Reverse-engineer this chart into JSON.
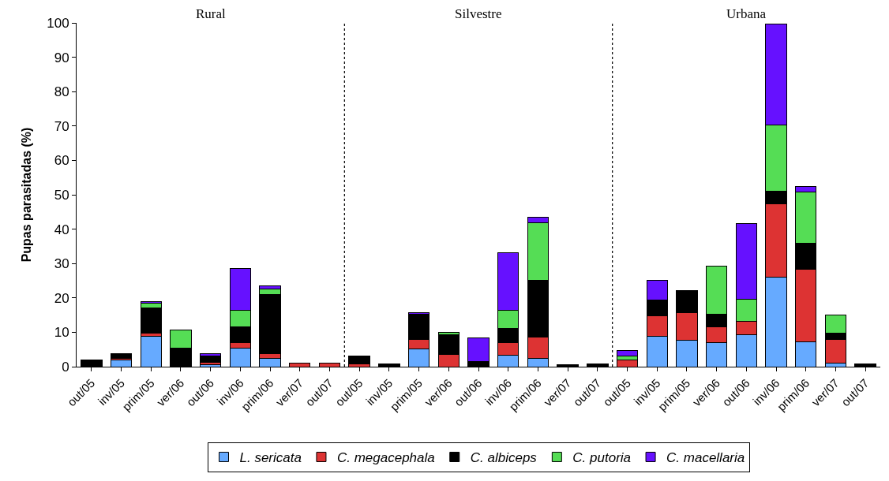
{
  "chart_data": {
    "type": "bar",
    "stacked": true,
    "ylabel": "Pupas parasitadas (%)",
    "categories": [
      "out/05",
      "inv/05",
      "prim/05",
      "ver/06",
      "out/06",
      "inv/06",
      "prim/06",
      "ver/07",
      "out/07",
      "out/05",
      "inv/05",
      "prim/05",
      "ver/06",
      "out/06",
      "inv/06",
      "prim/06",
      "ver/07",
      "out/07",
      "out/05",
      "inv/05",
      "prim/05",
      "ver/06",
      "out/06",
      "inv/06",
      "prim/06",
      "ver/07",
      "out/07"
    ],
    "series": [
      {
        "name": "L. sericata",
        "color": "#66aaff",
        "values": [
          null,
          1.9,
          8.9,
          null,
          0.6,
          5.3,
          2.5,
          null,
          null,
          null,
          null,
          5.2,
          null,
          null,
          3.4,
          2.5,
          null,
          null,
          null,
          8.9,
          7.7,
          6.9,
          9.2,
          26.1,
          7.3,
          1.1,
          null
        ]
      },
      {
        "name": "C. megacephala",
        "color": "#dd3333",
        "values": [
          null,
          0.6,
          0.9,
          null,
          0.7,
          1.8,
          1.3,
          1.1,
          1.1,
          0.9,
          null,
          2.7,
          3.6,
          null,
          3.7,
          6.2,
          null,
          null,
          1.9,
          6.0,
          8.1,
          4.6,
          3.9,
          21.2,
          21.1,
          6.9,
          null
        ]
      },
      {
        "name": "C. albiceps",
        "color": "#000000",
        "values": [
          1.9,
          1.3,
          7.2,
          5.5,
          1.8,
          4.5,
          17.1,
          null,
          null,
          2.3,
          0.8,
          7.3,
          5.7,
          1.5,
          4.1,
          16.4,
          0.5,
          0.7,
          null,
          4.5,
          6.3,
          3.7,
          null,
          3.7,
          7.5,
          1.8,
          0.8
        ]
      },
      {
        "name": "C. putoria",
        "color": "#55dd55",
        "values": [
          null,
          null,
          1.4,
          5.2,
          null,
          4.8,
          1.7,
          null,
          null,
          null,
          null,
          null,
          0.7,
          null,
          5.2,
          16.7,
          null,
          null,
          1.2,
          null,
          null,
          14.1,
          6.6,
          19.4,
          14.9,
          5.2,
          null
        ]
      },
      {
        "name": "C. macellaria",
        "color": "#6611ff",
        "values": [
          null,
          null,
          0.5,
          null,
          0.7,
          12.1,
          0.8,
          null,
          null,
          null,
          null,
          0.6,
          null,
          6.9,
          16.7,
          1.7,
          null,
          null,
          1.5,
          5.7,
          null,
          null,
          21.9,
          29.3,
          1.6,
          null,
          null
        ]
      }
    ],
    "ylim": [
      0,
      100
    ],
    "yticks": [
      0,
      10,
      20,
      30,
      40,
      50,
      60,
      70,
      80,
      90,
      100
    ],
    "annotations": [
      "Rural",
      "Silvestre",
      "Urbana"
    ],
    "legend": "bottom"
  }
}
